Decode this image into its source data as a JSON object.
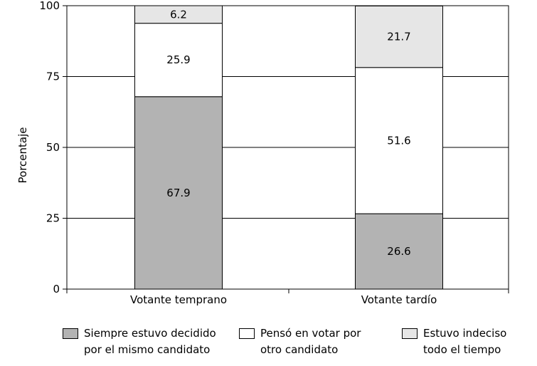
{
  "chart_data": {
    "type": "bar",
    "stacked": true,
    "categories": [
      "Votante temprano",
      "Votante tardío"
    ],
    "series": [
      {
        "name": "Siempre estuvo decidido\npor el mismo candidato",
        "values": [
          67.9,
          26.6
        ],
        "color": "#b3b3b3"
      },
      {
        "name": "Pensó en votar por\notro candidato",
        "values": [
          25.9,
          51.6
        ],
        "color": "#ffffff"
      },
      {
        "name": "Estuvo indeciso\ntodo el tiempo",
        "values": [
          6.2,
          21.7
        ],
        "color": "#e6e6e6"
      }
    ],
    "ylabel": "Porcentaje",
    "xlabel": "",
    "ylim": [
      0,
      100
    ],
    "yticks": [
      0,
      25,
      50,
      75,
      100
    ],
    "grid": true,
    "legend_position": "bottom"
  }
}
